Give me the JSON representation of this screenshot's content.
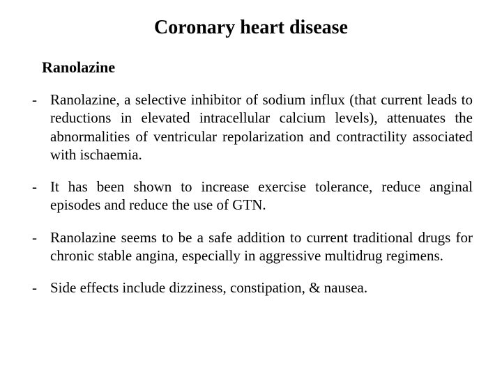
{
  "title": "Coronary heart disease",
  "subheading": "Ranolazine",
  "bullets": [
    "Ranolazine, a selective inhibitor of sodium influx (that current leads to reductions in elevated intracellular calcium levels), attenuates the abnormalities of ventricular repolarization and contractility associated with ischaemia.",
    "It has been shown to increase exercise tolerance, reduce anginal episodes and reduce the use of GTN.",
    "Ranolazine seems to be a safe addition to current traditional drugs for chronic stable angina, especially in aggressive multidrug regimens.",
    "Side effects include dizziness, constipation, & nausea."
  ],
  "colors": {
    "background": "#ffffff",
    "text": "#000000"
  },
  "typography": {
    "family": "Times New Roman",
    "title_fontsize_pt": 21,
    "subheading_fontsize_pt": 17,
    "body_fontsize_pt": 16
  }
}
